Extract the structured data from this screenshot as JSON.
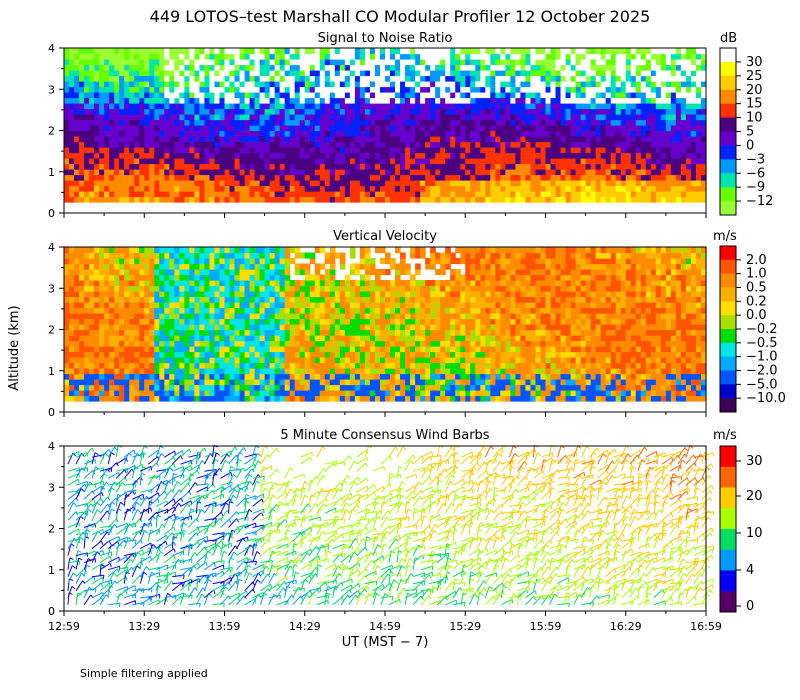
{
  "title": "449 LOTOS–test Marshall CO Modular Profiler 12 October 2025",
  "footer_note": "Simple filtering applied",
  "chart_data": [
    {
      "type": "heatmap",
      "title": "Signal to Noise Ratio",
      "ylabel": "Altitude (km)",
      "ylim": [
        0,
        4
      ],
      "yticks": [
        "0",
        "1",
        "2",
        "3",
        "4"
      ],
      "xticks": [
        "12:59",
        "13:29",
        "13:59",
        "14:29",
        "14:59",
        "15:29",
        "15:59",
        "16:29",
        "16:59"
      ],
      "xlabel": "UT  (MST − 7)",
      "colorbar": {
        "unit": "dB",
        "labels": [
          "30",
          "25",
          "20",
          "15",
          "10",
          "5",
          "0",
          "−3",
          "−6",
          "−9",
          "−12"
        ],
        "colors": [
          "#ffffff",
          "#ffff00",
          "#ffcc00",
          "#ff8c00",
          "#ff3300",
          "#4b0082",
          "#6600cc",
          "#0022ff",
          "#0099ff",
          "#00e5b0",
          "#66ff00",
          "#99ff33"
        ]
      }
    },
    {
      "type": "heatmap",
      "title": "Vertical Velocity",
      "ylim": [
        0,
        4
      ],
      "yticks": [
        "0",
        "1",
        "2",
        "3",
        "4"
      ],
      "colorbar": {
        "unit": "m/s",
        "labels": [
          "2.0",
          "1.0",
          "0.5",
          "0.2",
          "0.0",
          "−0.2",
          "−0.5",
          "−1.0",
          "−2.0",
          "−5.0",
          "−10.0"
        ],
        "colors": [
          "#ff0000",
          "#ff5500",
          "#ff8c00",
          "#ffb000",
          "#ffdd00",
          "#aadd00",
          "#00dd00",
          "#00e5e5",
          "#00aaff",
          "#0055ff",
          "#0000cc",
          "#3a005a"
        ]
      }
    },
    {
      "type": "scatter",
      "title": "5 Minute Consensus Wind Barbs",
      "ylim": [
        0,
        4
      ],
      "yticks": [
        "0",
        "1",
        "2",
        "3",
        "4"
      ],
      "colorbar": {
        "unit": "m/s",
        "labels": [
          "30",
          "20",
          "10",
          "4",
          "0"
        ],
        "colors": [
          "#ff0000",
          "#ff6600",
          "#ffcc00",
          "#aaff00",
          "#00dd66",
          "#0099ff",
          "#0000ff",
          "#550066"
        ]
      }
    }
  ]
}
